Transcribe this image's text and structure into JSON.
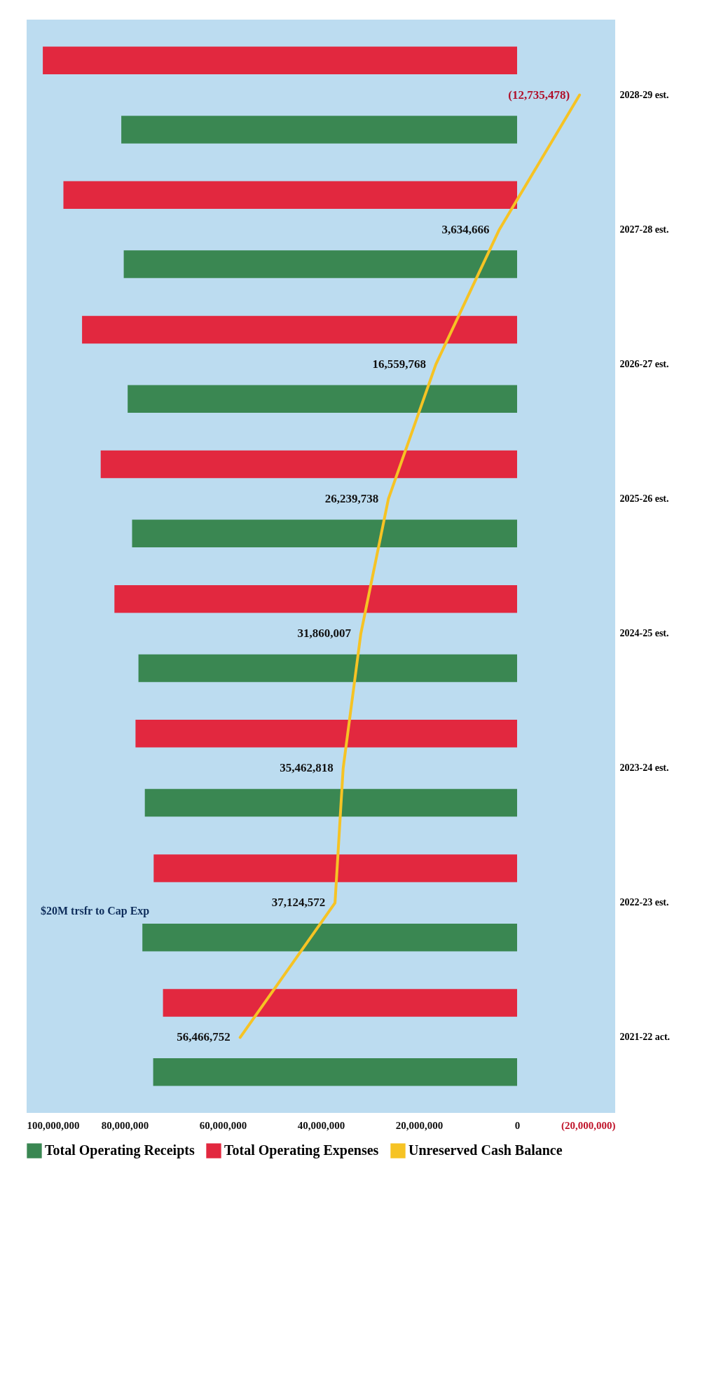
{
  "chart_data": {
    "type": "bar",
    "orientation": "horizontal",
    "categories": [
      "2028-29 est.",
      "2027-28 est.",
      "2026-27 est.",
      "2025-26 est.",
      "2024-25 est.",
      "2023-24 est.",
      "2022-23 est.",
      "2021-22 act."
    ],
    "series": [
      {
        "name": "Total Operating Receipts",
        "type": "bar",
        "color": "#3a8752",
        "values": [
          80700000,
          80200000,
          79400000,
          78500000,
          77200000,
          75900000,
          76400000,
          74200000
        ]
      },
      {
        "name": "Total Operating Expenses",
        "type": "bar",
        "color": "#e2283f",
        "values": [
          96700000,
          92500000,
          88700000,
          84900000,
          82100000,
          77800000,
          74100000,
          72200000
        ]
      },
      {
        "name": "Unreserved Cash Balance",
        "type": "line",
        "color": "#f6c324",
        "values": [
          -12735478,
          3634666,
          16559768,
          26239738,
          31860007,
          35462818,
          37124572,
          56466752
        ],
        "value_labels": [
          "(12,735,478)",
          "3,634,666",
          "16,559,768",
          "26,239,738",
          "31,860,007",
          "35,462,818",
          "37,124,572",
          "56,466,752"
        ]
      }
    ],
    "xlim": [
      100000000,
      -20000000
    ],
    "xticks": [
      {
        "value": 100000000,
        "label": "100,000,000"
      },
      {
        "value": 80000000,
        "label": "80,000,000"
      },
      {
        "value": 60000000,
        "label": "60,000,000"
      },
      {
        "value": 40000000,
        "label": "40,000,000"
      },
      {
        "value": 20000000,
        "label": "20,000,000"
      },
      0,
      {
        "value": -20000000,
        "label": "(20,000,000)"
      }
    ],
    "annotations": [
      "$20M trsfr to Cap Exp"
    ],
    "legend": "right",
    "grid": false
  }
}
